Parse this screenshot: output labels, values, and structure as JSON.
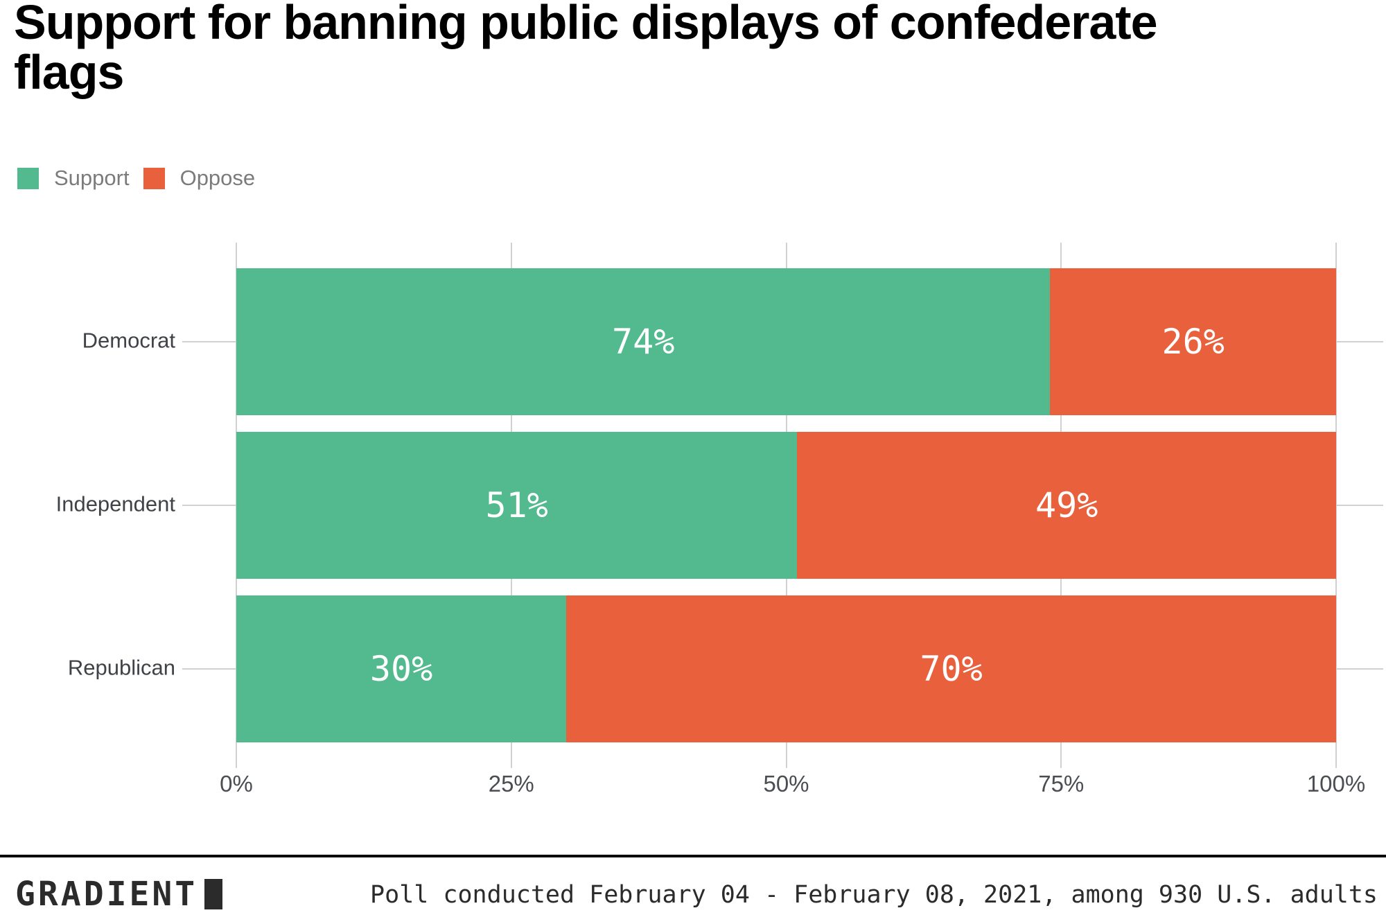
{
  "title": "Support for banning public displays of confederate flags",
  "legend": {
    "items": [
      {
        "label": "Support",
        "color": "#52BA8E"
      },
      {
        "label": "Oppose",
        "color": "#E9613C"
      }
    ]
  },
  "footer": {
    "logo_text": "GRADIENT",
    "note": "Poll conducted February 04 - February 08, 2021, among 930 U.S. adults"
  },
  "chart_data": {
    "type": "bar",
    "orientation": "horizontal",
    "stacked": true,
    "title": "Support for banning public displays of confederate flags",
    "categories": [
      "Democrat",
      "Independent",
      "Republican"
    ],
    "series": [
      {
        "name": "Support",
        "color": "#52BA8E",
        "values": [
          74,
          51,
          30
        ]
      },
      {
        "name": "Oppose",
        "color": "#E9613C",
        "values": [
          26,
          49,
          70
        ]
      }
    ],
    "value_suffix": "%",
    "xlim": [
      0,
      100
    ],
    "x_ticks": [
      {
        "value": 0,
        "label": "0%"
      },
      {
        "value": 25,
        "label": "25%"
      },
      {
        "value": 50,
        "label": "50%"
      },
      {
        "value": 75,
        "label": "75%"
      },
      {
        "value": 100,
        "label": "100%"
      }
    ],
    "grid": "vertical",
    "legend_position": "top-left",
    "bar_label_color": "#ffffff",
    "source_note": "Poll conducted February 04 - February 08, 2021, among 930 U.S. adults"
  }
}
